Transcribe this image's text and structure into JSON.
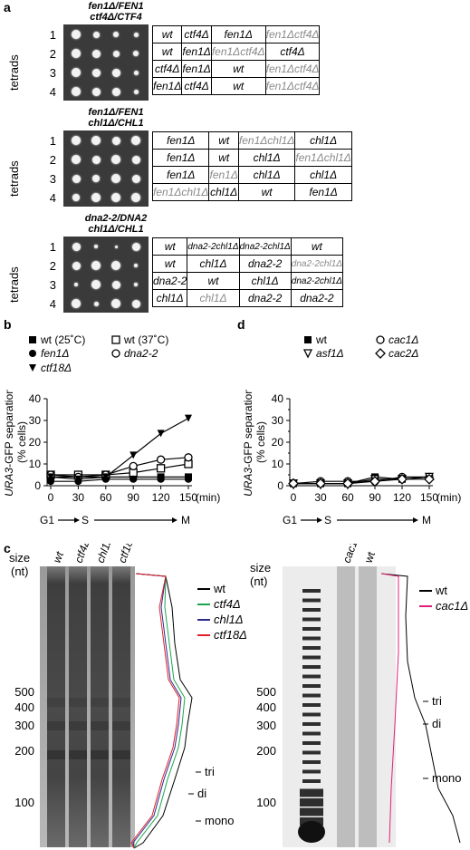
{
  "panels": {
    "a": "a",
    "b": "b",
    "c": "c",
    "d": "d"
  },
  "tetrad_label": "tetrads",
  "row_numbers": [
    "1",
    "2",
    "3",
    "4"
  ],
  "blocks": [
    {
      "genotype_line1": "fen1Δ/FEN1",
      "genotype_line2": "ctf4Δ/CTF4",
      "rows": [
        [
          {
            "t": "wt"
          },
          {
            "t": "ctf4Δ"
          },
          {
            "t": "fen1Δ"
          },
          {
            "t": "fen1Δctf4Δ",
            "g": true
          }
        ],
        [
          {
            "t": "wt"
          },
          {
            "t": "fen1Δ"
          },
          {
            "t": "fen1Δctf4Δ",
            "g": true
          },
          {
            "t": "ctf4Δ"
          }
        ],
        [
          {
            "t": "ctf4Δ"
          },
          {
            "t": "fen1Δ"
          },
          {
            "t": "wt"
          },
          {
            "t": "fen1Δctf4Δ",
            "g": true
          }
        ],
        [
          {
            "t": "fen1Δ"
          },
          {
            "t": "ctf4Δ"
          },
          {
            "t": "wt"
          },
          {
            "t": "fen1Δctf4Δ",
            "g": true
          }
        ]
      ]
    },
    {
      "genotype_line1": "fen1Δ/FEN1",
      "genotype_line2": "chl1Δ/CHL1",
      "rows": [
        [
          {
            "t": "fen1Δ"
          },
          {
            "t": "wt"
          },
          {
            "t": "fen1Δchl1Δ",
            "g": true
          },
          {
            "t": "chl1Δ"
          }
        ],
        [
          {
            "t": "fen1Δ"
          },
          {
            "t": "wt"
          },
          {
            "t": "chl1Δ"
          },
          {
            "t": "fen1Δchl1Δ",
            "g": true
          }
        ],
        [
          {
            "t": "fen1Δ"
          },
          {
            "t": "fen1Δ",
            "g": true
          },
          {
            "t": "chl1Δ"
          },
          {
            "t": "chl1Δ"
          }
        ],
        [
          {
            "t": "fen1Δchl1Δ",
            "g": true
          },
          {
            "t": "chl1Δ"
          },
          {
            "t": "wt"
          },
          {
            "t": "fen1Δ"
          }
        ]
      ]
    },
    {
      "genotype_line1": "dna2-2/DNA2",
      "genotype_line2": "chl1Δ/CHL1",
      "rows": [
        [
          {
            "t": "wt"
          },
          {
            "t": "dna2-2chl1Δ",
            "s": true
          },
          {
            "t": "dna2-2chl1Δ",
            "s": true
          },
          {
            "t": "wt"
          }
        ],
        [
          {
            "t": "wt"
          },
          {
            "t": "chl1Δ"
          },
          {
            "t": "dna2-2"
          },
          {
            "t": "dna2-2chl1Δ",
            "g": true,
            "s": true
          }
        ],
        [
          {
            "t": "dna2-2"
          },
          {
            "t": "wt"
          },
          {
            "t": "chl1Δ"
          },
          {
            "t": "dna2-2chl1Δ",
            "s": true
          }
        ],
        [
          {
            "t": "chl1Δ"
          },
          {
            "t": "chl1Δ",
            "g": true
          },
          {
            "t": "dna2-2"
          },
          {
            "t": "dna2-2"
          }
        ]
      ]
    }
  ],
  "chart_b": {
    "legend": [
      "wt (25˚C)",
      "wt (37˚C)",
      "fen1Δ",
      "dna2-2",
      "ctf18Δ"
    ],
    "ylabel_italic": "URA3",
    "ylabel_rest": "-GFP separation",
    "ylabel2": "(% cells)",
    "xunit": "(min)",
    "phase": [
      "G1",
      "S",
      "M"
    ]
  },
  "chart_d": {
    "legend": [
      "wt",
      "cac1Δ",
      "asf1Δ",
      "cac2Δ"
    ],
    "ylabel_italic": "URA3",
    "ylabel_rest": "-GFP separation",
    "ylabel2": "(% cells)",
    "xunit": "(min)",
    "phase": [
      "G1",
      "S",
      "M"
    ]
  },
  "chart_data": [
    {
      "type": "line",
      "x": [
        0,
        30,
        60,
        90,
        120,
        150
      ],
      "xlim": [
        0,
        150
      ],
      "ylim": [
        0,
        40
      ],
      "yticks": [
        0,
        10,
        20,
        30,
        40
      ],
      "series": [
        {
          "name": "wt (25˚C)",
          "marker": "filled-square",
          "values": [
            4,
            4,
            4,
            4,
            4,
            4
          ]
        },
        {
          "name": "wt (37˚C)",
          "marker": "open-square",
          "values": [
            5,
            5,
            5,
            6,
            8,
            10
          ]
        },
        {
          "name": "fen1Δ",
          "marker": "filled-circle",
          "values": [
            2,
            2,
            3,
            3,
            3,
            3
          ]
        },
        {
          "name": "dna2-2",
          "marker": "open-circle",
          "values": [
            5,
            4,
            5,
            9,
            12,
            13
          ]
        },
        {
          "name": "ctf18Δ",
          "marker": "filled-triangle-down",
          "values": [
            4,
            3,
            4,
            14,
            24,
            31
          ]
        }
      ]
    },
    {
      "type": "line",
      "x": [
        0,
        30,
        60,
        90,
        120,
        150
      ],
      "xlim": [
        0,
        150
      ],
      "ylim": [
        0,
        40
      ],
      "yticks": [
        0,
        5,
        10,
        15,
        20,
        25,
        30,
        35,
        40
      ],
      "series": [
        {
          "name": "wt",
          "marker": "filled-square",
          "values": [
            1,
            1,
            1,
            4,
            3,
            4
          ]
        },
        {
          "name": "cac1Δ",
          "marker": "open-circle",
          "values": [
            1,
            2,
            2,
            2,
            4,
            4
          ]
        },
        {
          "name": "asf1Δ",
          "marker": "open-triangle-down",
          "values": [
            1,
            1,
            1,
            3,
            3,
            4
          ]
        },
        {
          "name": "cac2Δ",
          "marker": "open-diamond",
          "values": [
            1,
            1,
            1,
            2,
            3,
            3
          ]
        }
      ]
    }
  ],
  "gel_left": {
    "size_label": "size",
    "size_unit": "(nt)",
    "lanes": [
      "wt",
      "ctf4Δ",
      "chl1Δ",
      "ctf18Δ"
    ],
    "markers": [
      "500",
      "400",
      "300",
      "200",
      "100"
    ],
    "legend": [
      "wt",
      "ctf4Δ",
      "chl1Δ",
      "ctf18Δ"
    ],
    "legend_colors": [
      "#000000",
      "#1aa64a",
      "#2d2a8a",
      "#e0202a"
    ],
    "annotations": [
      "tri",
      "di",
      "mono"
    ]
  },
  "gel_right": {
    "size_label": "size",
    "size_unit": "(nt)",
    "lanes": [
      "cac1Δ",
      "wt"
    ],
    "markers": [
      "500",
      "400",
      "300",
      "200",
      "100"
    ],
    "legend": [
      "wt",
      "cac1Δ"
    ],
    "legend_colors": [
      "#000000",
      "#e0207a"
    ],
    "annotations": [
      "tri",
      "di",
      "mono"
    ]
  }
}
